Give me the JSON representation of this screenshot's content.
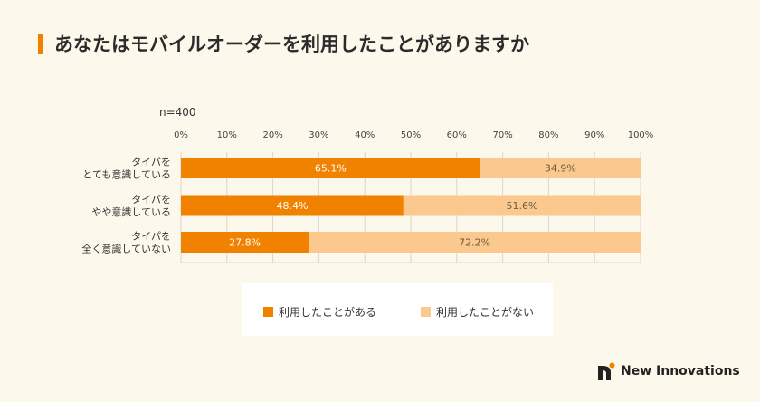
{
  "title": "あなたはモバイルオーダーを利用したことがありますか",
  "n_label": "n=400",
  "colors": {
    "accent": "#f08200",
    "used": "#f08200",
    "not_used": "#fbc98e",
    "background": "#fdf8ec"
  },
  "chart_data": {
    "type": "bar",
    "orientation": "horizontal",
    "stacked": true,
    "percent": true,
    "xlim": [
      0,
      100
    ],
    "x_ticks": [
      "0%",
      "10%",
      "20%",
      "30%",
      "40%",
      "50%",
      "60%",
      "70%",
      "80%",
      "90%",
      "100%"
    ],
    "categories": [
      [
        "タイパを",
        "とても意識している"
      ],
      [
        "タイパを",
        "やや意識している"
      ],
      [
        "タイパを",
        "全く意識していない"
      ]
    ],
    "series": [
      {
        "name": "利用したことがある",
        "values": [
          65.1,
          48.4,
          27.8
        ],
        "labels": [
          "65.1%",
          "48.4%",
          "27.8%"
        ]
      },
      {
        "name": "利用したことがない",
        "values": [
          34.9,
          51.6,
          72.2
        ],
        "labels": [
          "34.9%",
          "51.6%",
          "72.2%"
        ]
      }
    ],
    "legend_position": "bottom",
    "grid": true
  },
  "legend": {
    "used": "利用したことがある",
    "not_used": "利用したことがない"
  },
  "logo": {
    "text": "New Innovations",
    "icon": "new-innovations-logo-icon"
  }
}
